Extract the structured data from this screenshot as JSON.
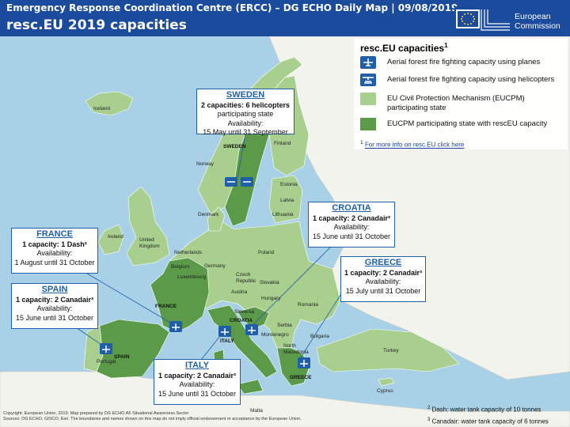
{
  "header": {
    "line1": "Emergency Response Coordination Centre (ERCC) – DG ECHO Daily Map | 09/08/2019",
    "line2": "resc.EU 2019 capacities",
    "ec_logo": [
      "European",
      "Commission"
    ]
  },
  "legend": {
    "title": "resc.EU capacities",
    "title_sup": "1",
    "items": [
      {
        "icon": "plane-icon",
        "text": "Aerial forest fire fighting capacity using planes"
      },
      {
        "icon": "helicopter-icon",
        "text": "Aerial forest fire fighting capacity using helicopters"
      },
      {
        "icon": "light-green-swatch",
        "text": "EU Civil Protection Mechanism (EUCPM) participating state"
      },
      {
        "icon": "dark-green-swatch",
        "text": "EUCPM participating state with rescEU capacity"
      }
    ],
    "footnote_sup": "1",
    "footnote_link": "For more info on resc.EU click here"
  },
  "colors": {
    "sea": "#a8d0e6",
    "eucpm": "#a9cf8e",
    "rescue": "#5a9a48",
    "other_land": "#f3f3ee",
    "box_border": "#1f5fa8"
  },
  "boxes": [
    {
      "id": "sweden",
      "title": "SWEDEN",
      "cap": "2 capacities: 6 helicopters",
      "lines": [
        "participating state",
        "Availability:",
        "15 May until 31 September"
      ]
    },
    {
      "id": "croatia",
      "title": "CROATIA",
      "cap": "1 capacity: 2 Canadair³",
      "lines": [
        "Availability:",
        "15 June until 31 October"
      ]
    },
    {
      "id": "france",
      "title": "FRANCE",
      "cap": "1 capacity: 1 Dash²",
      "lines": [
        "Availability:",
        "1 August until 31 October"
      ]
    },
    {
      "id": "greece",
      "title": "GREECE",
      "cap": "1 capacity: 2 Canadair³",
      "lines": [
        "Availability:",
        "15 July until 31 October"
      ]
    },
    {
      "id": "spain",
      "title": "SPAIN",
      "cap": "1 capacity: 2 Canadair³",
      "lines": [
        "Availability:",
        "15 June until 31 October"
      ]
    },
    {
      "id": "italy",
      "title": "ITALY",
      "cap": "1 capacity: 2 Canadair³",
      "lines": [
        "Availability:",
        "15 June until 31 October"
      ]
    }
  ],
  "map_labels": [
    "Iceland",
    "Norway",
    "SWEDEN",
    "Finland",
    "Estonia",
    "Latvia",
    "Lithuania",
    "Denmark",
    "Ireland",
    "United Kingdom",
    "Netherlands",
    "Belgium",
    "Luxembourg",
    "Germany",
    "Poland",
    "Czech Republic",
    "Slovakia",
    "Austria",
    "Hungary",
    "Romania",
    "FRANCE",
    "Slovenia",
    "CROATIA",
    "Serbia",
    "Montenegro",
    "Bulgaria",
    "North Macedonia",
    "ITALY",
    "Portugal",
    "SPAIN",
    "GREECE",
    "Turkey",
    "Cyprus",
    "Malta"
  ],
  "copyright": [
    "Copyright: European Union, 2019. Map prepared by DG ECHO A5 Situational Awareness Sector",
    "Sources: DG ECHO, GISCO, Esri. The boundaries and names shown on this map do not imply official endorsement or acceptance by the European Union."
  ],
  "notes": [
    {
      "sup": "2",
      "text": "Dash: water tank capacity of 10 tonnes"
    },
    {
      "sup": "3",
      "text": "Canadair: water tank capacity of 6 tonnes"
    }
  ]
}
